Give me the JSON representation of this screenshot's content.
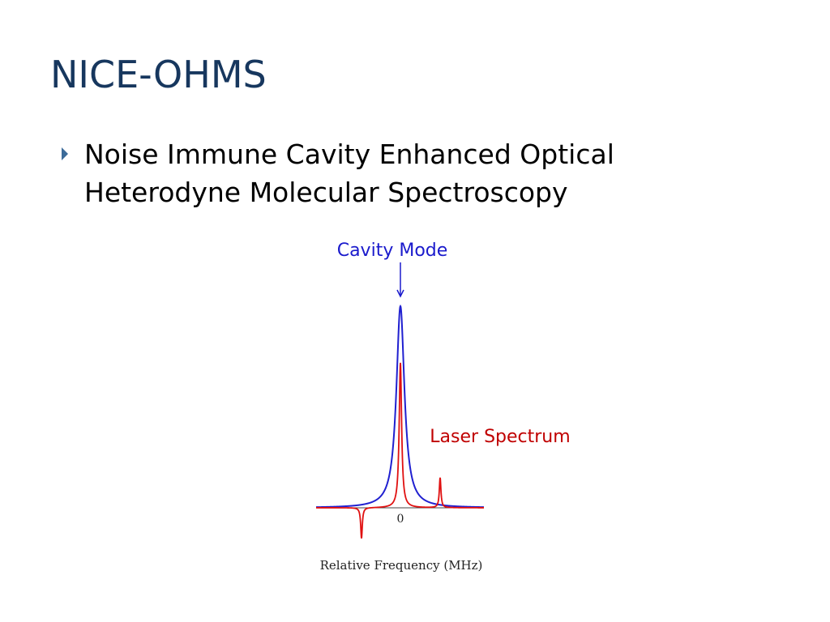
{
  "slide": {
    "title": "NICE-OHMS",
    "bullets": [
      [
        "Noise Immune Cavity Enhanced Optical",
        "Heterodyne Molecular Spectroscopy"
      ]
    ]
  },
  "figure": {
    "cavity_label": "Cavity Mode",
    "laser_label": "Laser Spectrum",
    "x_tick_label": "0",
    "x_label": "Relative Frequency (MHz)"
  }
}
